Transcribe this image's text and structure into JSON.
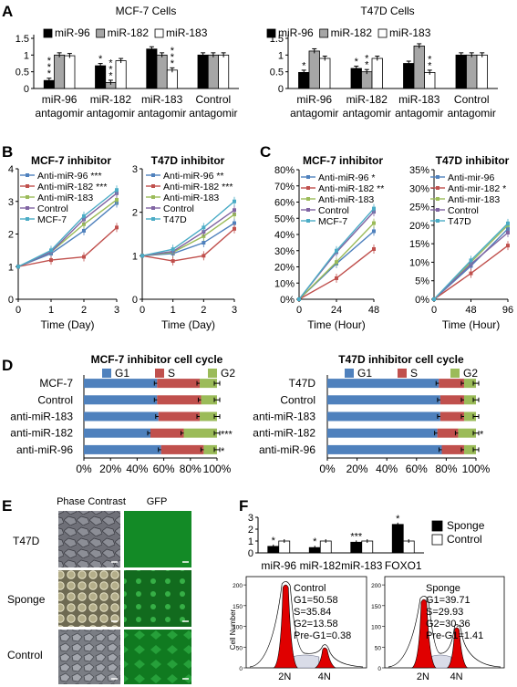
{
  "panel_letters": [
    "A",
    "B",
    "C",
    "D",
    "E",
    "F"
  ],
  "colors": {
    "black": "#000000",
    "gray": "#a6a6a6",
    "white": "#ffffff",
    "blue": "#4f81bd",
    "red": "#c0504d",
    "green": "#9bbb59",
    "purple": "#8064a2",
    "cyan": "#4bacc6",
    "flow_red": "#e00000"
  },
  "chart_data": [
    {
      "id": "A1",
      "type": "bar",
      "title": "MCF-7 Cells",
      "legend": [
        "miR-96",
        "miR-182",
        "miR-183"
      ],
      "categories": [
        [
          "miR-96",
          "antagomir"
        ],
        [
          "miR-182",
          "antagomir"
        ],
        [
          "miR-183",
          "antagomir"
        ],
        [
          "Control",
          "antagomir"
        ]
      ],
      "ylim": [
        0,
        1.5
      ],
      "yticks": [
        "0",
        "0.5",
        "1",
        "1.5"
      ],
      "series": [
        {
          "name": "miR-96",
          "values": [
            0.24,
            0.68,
            1.18,
            1.0
          ]
        },
        {
          "name": "miR-182",
          "values": [
            1.0,
            0.18,
            1.0,
            1.0
          ]
        },
        {
          "name": "miR-183",
          "values": [
            0.98,
            0.83,
            0.55,
            1.0
          ]
        }
      ],
      "stars": [
        {
          "cat": 0,
          "ser": 0,
          "text": "***"
        },
        {
          "cat": 1,
          "ser": 0,
          "text": "*"
        },
        {
          "cat": 1,
          "ser": 1,
          "text": "***"
        },
        {
          "cat": 2,
          "ser": 2,
          "text": "***"
        }
      ]
    },
    {
      "id": "A2",
      "type": "bar",
      "title": "T47D Cells",
      "legend": [
        "miR-96",
        "miR-182",
        "miR-183"
      ],
      "categories": [
        [
          "miR-96",
          "antagomir"
        ],
        [
          "miR-182",
          "antagomir"
        ],
        [
          "miR-183",
          "antagomir"
        ],
        [
          "Control",
          "antagomir"
        ]
      ],
      "ylim": [
        0,
        1.5
      ],
      "yticks": [
        "0",
        "0.5",
        "1",
        "1.5"
      ],
      "series": [
        {
          "name": "miR-96",
          "values": [
            0.48,
            0.6,
            0.75,
            1.0
          ]
        },
        {
          "name": "miR-182",
          "values": [
            1.12,
            0.5,
            1.27,
            1.0
          ]
        },
        {
          "name": "miR-183",
          "values": [
            0.9,
            0.9,
            0.48,
            1.0
          ]
        }
      ],
      "stars": [
        {
          "cat": 0,
          "ser": 0,
          "text": "*"
        },
        {
          "cat": 1,
          "ser": 0,
          "text": "*"
        },
        {
          "cat": 1,
          "ser": 1,
          "text": "**"
        },
        {
          "cat": 2,
          "ser": 2,
          "text": "**"
        }
      ]
    },
    {
      "id": "B1",
      "type": "line",
      "title": "MCF-7 inhibitor",
      "xlabel": "Time (Day)",
      "x": [
        0,
        1,
        2,
        3
      ],
      "ylim": [
        0,
        4
      ],
      "yticks": [
        "0",
        "1",
        "2",
        "3",
        "4"
      ],
      "xticks": [
        "0",
        "1",
        "2",
        "3"
      ],
      "series": [
        {
          "name": "Anti-miR-96 ***",
          "values": [
            1,
            1.4,
            2.1,
            2.95
          ]
        },
        {
          "name": "Anti-miR-182 ***",
          "values": [
            1,
            1.2,
            1.3,
            2.2
          ]
        },
        {
          "name": "Anti-miR-183",
          "values": [
            1,
            1.45,
            2.3,
            3.05
          ]
        },
        {
          "name": "Control",
          "values": [
            1,
            1.45,
            2.45,
            3.25
          ]
        },
        {
          "name": "MCF-7",
          "values": [
            1,
            1.5,
            2.55,
            3.35
          ]
        }
      ]
    },
    {
      "id": "B2",
      "type": "line",
      "title": "T47D inhibitor",
      "xlabel": "Time (Day)",
      "x": [
        0,
        1,
        2,
        3
      ],
      "ylim": [
        0,
        3
      ],
      "yticks": [
        "0",
        "1",
        "2",
        "3"
      ],
      "xticks": [
        "0",
        "1",
        "2",
        "3"
      ],
      "series": [
        {
          "name": "Anti-miR-96 **",
          "values": [
            1,
            1.05,
            1.3,
            1.75
          ]
        },
        {
          "name": "Anti-miR-182 ***",
          "values": [
            1,
            0.88,
            1.0,
            1.62
          ]
        },
        {
          "name": "Anti-miR-183",
          "values": [
            1,
            1.08,
            1.45,
            1.95
          ]
        },
        {
          "name": "Control",
          "values": [
            1,
            1.1,
            1.55,
            2.05
          ]
        },
        {
          "name": "T47D",
          "values": [
            1,
            1.15,
            1.65,
            2.25
          ]
        }
      ]
    },
    {
      "id": "C1",
      "type": "line",
      "title": "MCF-7  inhibitor",
      "xlabel": "Time (Hour)",
      "x": [
        0,
        24,
        48
      ],
      "ylim": [
        0,
        80
      ],
      "yticks": [
        "0%",
        "10%",
        "20%",
        "30%",
        "40%",
        "50%",
        "60%",
        "70%",
        "80%"
      ],
      "xticks": [
        "0",
        "24",
        "48"
      ],
      "series": [
        {
          "name": "Anti-miR-96 *",
          "values": [
            0,
            22,
            42
          ]
        },
        {
          "name": "Anti-miR-182 **",
          "values": [
            0,
            13,
            31
          ]
        },
        {
          "name": "Anti-miR-183",
          "values": [
            0,
            23,
            47
          ]
        },
        {
          "name": "Control",
          "values": [
            0,
            29,
            54
          ]
        },
        {
          "name": "MCF-7",
          "values": [
            0,
            30,
            56
          ]
        }
      ]
    },
    {
      "id": "C2",
      "type": "line",
      "title": "T47D inhibitor",
      "xlabel": "Time (Hour)",
      "x": [
        0,
        48,
        96
      ],
      "ylim": [
        0,
        35
      ],
      "yticks": [
        "0%",
        "5%",
        "10%",
        "15%",
        "20%",
        "25%",
        "30%",
        "35%"
      ],
      "xticks": [
        "0",
        "48",
        "96"
      ],
      "series": [
        {
          "name": "Anti-mir-96",
          "values": [
            0,
            9,
            19
          ]
        },
        {
          "name": "Anti-mir-182 *",
          "values": [
            0,
            7,
            14.5
          ]
        },
        {
          "name": "Anti-mir-183",
          "values": [
            0,
            10,
            20
          ]
        },
        {
          "name": "Control",
          "values": [
            0,
            9.5,
            18
          ]
        },
        {
          "name": "T47D",
          "values": [
            0,
            10.5,
            20.5
          ]
        }
      ]
    },
    {
      "id": "D1",
      "type": "bar",
      "title": "MCF-7 inhibitor cell cycle",
      "orientation": "horizontal-stacked",
      "legend": [
        "G1",
        "S",
        "G2"
      ],
      "categories": [
        "MCF-7",
        "Control",
        "anti-miR-183",
        "anti-miR-182",
        "anti-miR-96"
      ],
      "xticks": [
        "0%",
        "20%",
        "40%",
        "60%",
        "80%",
        "100%"
      ],
      "series": [
        {
          "name": "G1",
          "values": [
            55,
            55,
            56,
            50,
            58
          ]
        },
        {
          "name": "S",
          "values": [
            32,
            33,
            31,
            25,
            32
          ]
        },
        {
          "name": "G2",
          "values": [
            13,
            12,
            13,
            25,
            10
          ]
        }
      ],
      "stars": [
        "",
        "",
        "",
        "***",
        "*"
      ]
    },
    {
      "id": "D2",
      "type": "bar",
      "title": "T47D inhibitor cell cycle",
      "orientation": "horizontal-stacked",
      "legend": [
        "G1",
        "S",
        "G2"
      ],
      "categories": [
        "T47D",
        "Control",
        "anti-miR-183",
        "anti-miR-182",
        "anti-miR-96"
      ],
      "xticks": [
        "0%",
        "20%",
        "40%",
        "60%",
        "80%",
        "100%"
      ],
      "series": [
        {
          "name": "G1",
          "values": [
            75,
            76,
            76,
            74,
            77
          ]
        },
        {
          "name": "S",
          "values": [
            17,
            16,
            16,
            14,
            15
          ]
        },
        {
          "name": "G2",
          "values": [
            8,
            8,
            8,
            12,
            8
          ]
        }
      ],
      "stars": [
        "",
        "",
        "",
        "*",
        ""
      ]
    },
    {
      "id": "F1",
      "type": "bar",
      "legend": [
        "Sponge",
        "Control"
      ],
      "categories": [
        "miR-96",
        "miR-182",
        "miR-183",
        "FOXO1"
      ],
      "ylim": [
        0,
        3
      ],
      "yticks": [
        "0",
        "1",
        "2",
        "3"
      ],
      "series": [
        {
          "name": "Sponge",
          "values": [
            0.55,
            0.45,
            0.9,
            2.4
          ]
        },
        {
          "name": "Control",
          "values": [
            1.0,
            1.0,
            1.0,
            1.0
          ]
        }
      ],
      "stars": [
        "*",
        "*",
        "***",
        "*"
      ]
    },
    {
      "id": "F2",
      "type": "area",
      "ylabel": "Cell Number",
      "xticks": [
        "2N",
        "4N"
      ],
      "yticks_left": [
        "0",
        "50",
        "100",
        "150",
        "200"
      ],
      "yticks_right": [
        "0",
        "50",
        "100",
        "150",
        "200"
      ],
      "control_stats": [
        "Control",
        "G1=50.58",
        "S=35.84",
        "G2=13.58",
        "Pre-G1=0.38"
      ],
      "sponge_stats": [
        "Sponge",
        "G1=39.71",
        "S=29.93",
        "G2=30.36",
        "Pre-G1=1.41"
      ]
    }
  ],
  "panel_e": {
    "col_headers": [
      "Phase Contrast",
      "GFP"
    ],
    "row_labels": [
      "T47D",
      "Sponge",
      "Control"
    ]
  }
}
